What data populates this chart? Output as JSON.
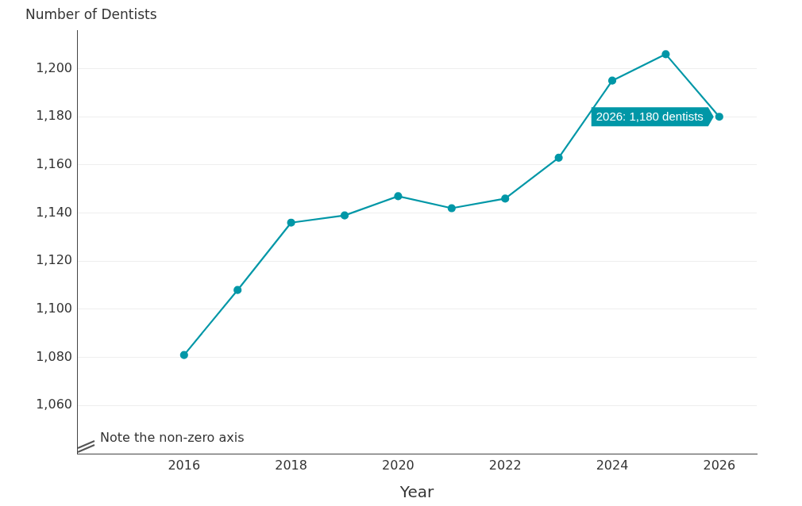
{
  "chart_data": {
    "type": "line",
    "ylabel": "Number of Dentists",
    "xlabel": "Year",
    "x": [
      2016,
      2017,
      2018,
      2019,
      2020,
      2021,
      2022,
      2023,
      2024,
      2025,
      2026
    ],
    "series": [
      {
        "color": "#0097a7",
        "values": [
          1081,
          1108,
          1136,
          1139,
          1147,
          1142,
          1146,
          1163,
          1195,
          1206,
          1180
        ]
      }
    ],
    "xlim": [
      2014,
      2026.7
    ],
    "xticks": [
      2016,
      2018,
      2020,
      2022,
      2024,
      2026
    ],
    "ylim": [
      1040,
      1216
    ],
    "yticks": [
      {
        "value": 1060,
        "label": "1,060"
      },
      {
        "value": 1080,
        "label": "1,080"
      },
      {
        "value": 1100,
        "label": "1,100"
      },
      {
        "value": 1120,
        "label": "1,120"
      },
      {
        "value": 1140,
        "label": "1,140"
      },
      {
        "value": 1160,
        "label": "1,160"
      },
      {
        "value": 1180,
        "label": "1,180"
      },
      {
        "value": 1200,
        "label": "1,200"
      }
    ],
    "grid": "y",
    "legend": false,
    "marker": "circle",
    "line_style": "solid",
    "annotations": [
      {
        "text": "2026: 1,180 dentists",
        "x": 2026,
        "y": 1180
      },
      "Note the non-zero axis"
    ]
  }
}
